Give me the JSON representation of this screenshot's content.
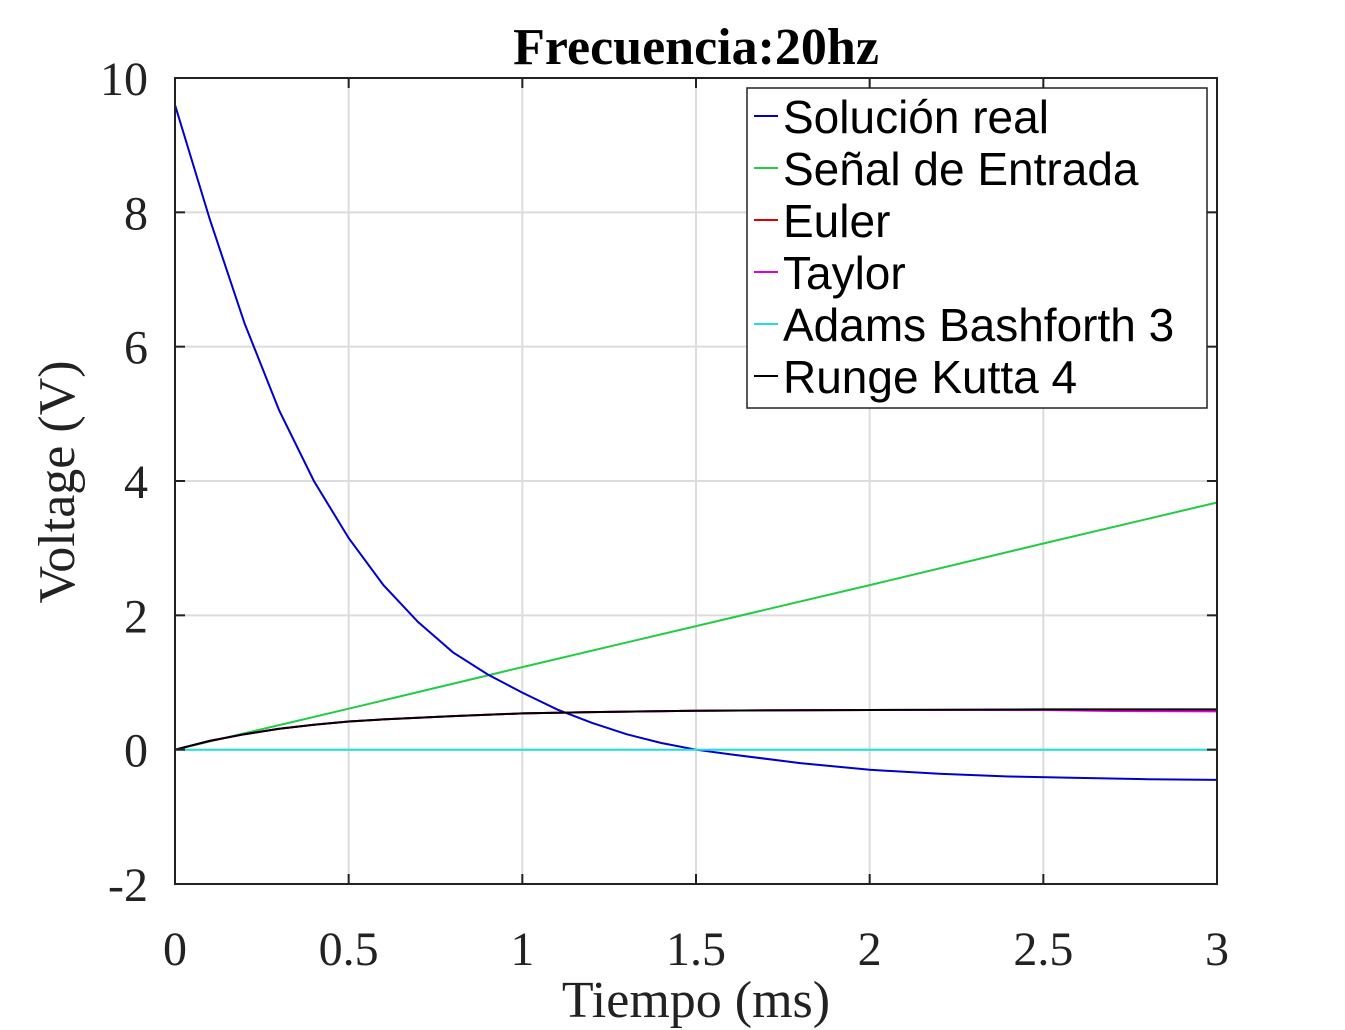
{
  "chart_data": {
    "type": "line",
    "title": "Frecuencia:20hz",
    "xlabel": "Tiempo (ms)",
    "ylabel": "Voltage (V)",
    "xlim": [
      0,
      3
    ],
    "ylim": [
      -2,
      10
    ],
    "xticks": [
      0,
      0.5,
      1,
      1.5,
      2,
      2.5,
      3
    ],
    "xtick_labels": [
      "0",
      "0.5",
      "1",
      "1.5",
      "2",
      "2.5",
      "3"
    ],
    "yticks": [
      -2,
      0,
      2,
      4,
      6,
      8,
      10
    ],
    "ytick_labels": [
      "-2",
      "0",
      "2",
      "4",
      "6",
      "8",
      "10"
    ],
    "grid": true,
    "legend_position": "top-right",
    "series": [
      {
        "name": "Solución real",
        "color": "#0000cc",
        "x": [
          0,
          0.1,
          0.2,
          0.3,
          0.4,
          0.5,
          0.6,
          0.7,
          0.8,
          0.9,
          1.0,
          1.1,
          1.2,
          1.3,
          1.4,
          1.5,
          1.6,
          1.8,
          2.0,
          2.2,
          2.4,
          2.6,
          2.8,
          3.0
        ],
        "y": [
          9.6,
          7.9,
          6.35,
          5.05,
          4.0,
          3.15,
          2.45,
          1.9,
          1.45,
          1.12,
          0.85,
          0.6,
          0.4,
          0.23,
          0.1,
          0.0,
          -0.07,
          -0.2,
          -0.3,
          -0.36,
          -0.4,
          -0.42,
          -0.44,
          -0.45
        ]
      },
      {
        "name": "Señal de Entrada",
        "color": "#22cc44",
        "x": [
          0,
          0.5,
          1,
          1.5,
          2,
          2.5,
          3
        ],
        "y": [
          0,
          0.61,
          1.23,
          1.84,
          2.45,
          3.07,
          3.68
        ]
      },
      {
        "name": "Euler",
        "color": "#dd0000",
        "x": [
          0,
          0.1,
          0.2,
          0.3,
          0.4,
          0.5,
          0.6,
          0.8,
          1.0,
          1.2,
          1.5,
          2.0,
          2.5,
          3.0
        ],
        "y": [
          0,
          0.13,
          0.23,
          0.31,
          0.37,
          0.42,
          0.45,
          0.5,
          0.54,
          0.56,
          0.58,
          0.59,
          0.59,
          0.59
        ]
      },
      {
        "name": "Taylor",
        "color": "#dd00dd",
        "x": [
          0,
          0.1,
          0.2,
          0.3,
          0.4,
          0.5,
          0.6,
          0.8,
          1.0,
          1.2,
          1.5,
          2.0,
          2.5,
          2.7,
          3.0
        ],
        "y": [
          0,
          0.13,
          0.23,
          0.31,
          0.37,
          0.42,
          0.45,
          0.5,
          0.54,
          0.56,
          0.58,
          0.59,
          0.59,
          0.575,
          0.57
        ]
      },
      {
        "name": "Adams Bashforth 3",
        "color": "#22dddd",
        "x": [
          0,
          3
        ],
        "y": [
          0,
          0
        ]
      },
      {
        "name": "Runge Kutta 4",
        "color": "#000000",
        "x": [
          0,
          0.1,
          0.2,
          0.3,
          0.4,
          0.5,
          0.6,
          0.8,
          1.0,
          1.2,
          1.5,
          2.0,
          2.5,
          3.0
        ],
        "y": [
          0,
          0.13,
          0.23,
          0.31,
          0.37,
          0.42,
          0.45,
          0.5,
          0.54,
          0.56,
          0.58,
          0.59,
          0.6,
          0.6
        ]
      }
    ]
  }
}
